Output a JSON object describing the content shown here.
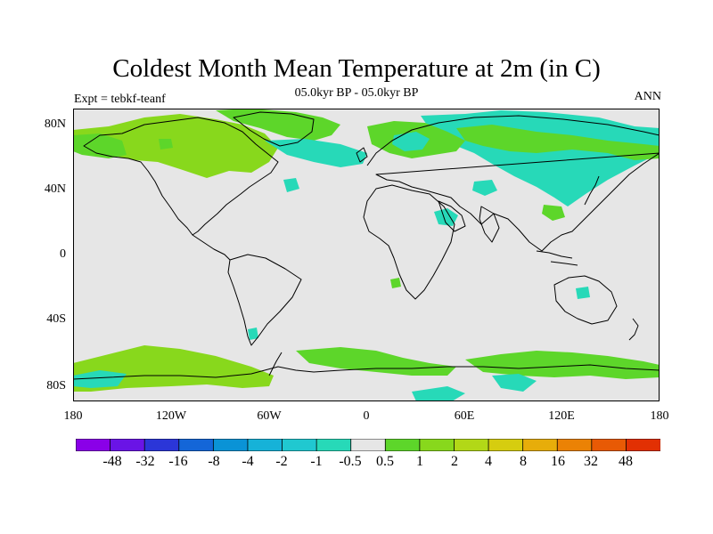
{
  "title": "Coldest Month Mean Temperature at 2m (in C)",
  "subtitle": "05.0kyr BP - 05.0kyr BP",
  "left_label": "Expt = tebkf-teanf",
  "right_label": "ANN",
  "lat_labels": [
    "80N",
    "40N",
    "0",
    "40S",
    "80S"
  ],
  "lon_labels": [
    "180",
    "120W",
    "60W",
    "0",
    "60E",
    "120E",
    "180"
  ],
  "colorbar": {
    "labels": [
      "-48",
      "-32",
      "-16",
      "-8",
      "-4",
      "-2",
      "-1",
      "-0.5",
      "0.5",
      "1",
      "2",
      "4",
      "8",
      "16",
      "32",
      "48"
    ],
    "colors": [
      "#8a00e8",
      "#6a14e6",
      "#2b36d8",
      "#1466d8",
      "#0a93d6",
      "#16b2d8",
      "#20c8d0",
      "#27d9b8",
      "#e6e6e6",
      "#5dd62a",
      "#88d81c",
      "#b2d817",
      "#d6cd0f",
      "#e7ad0a",
      "#eb8205",
      "#e85a05",
      "#e23003"
    ]
  },
  "colors": {
    "background": "#e6e6e6",
    "coast": "#000000",
    "cold_anomaly": "#27d9b8",
    "warm_anomaly": "#5dd62a",
    "strong_warm_anomaly": "#88d81c"
  }
}
